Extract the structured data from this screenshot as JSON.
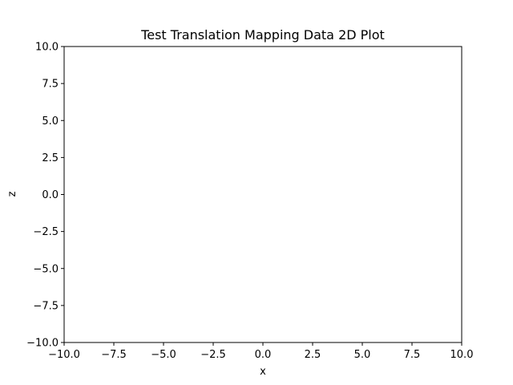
{
  "chart_data": {
    "type": "scatter",
    "title": "Test Translation Mapping Data 2D Plot",
    "xlabel": "x",
    "ylabel": "z",
    "xlim": [
      -10,
      10
    ],
    "ylim": [
      -10,
      10
    ],
    "x_ticks": [
      -10,
      -7.5,
      -5,
      -2.5,
      0,
      2.5,
      5,
      7.5,
      10
    ],
    "y_ticks": [
      -10,
      -7.5,
      -5,
      -2.5,
      0,
      2.5,
      5,
      7.5,
      10
    ],
    "x_tick_labels": [
      "−10.0",
      "−7.5",
      "−5.0",
      "−2.5",
      "0.0",
      "2.5",
      "5.0",
      "7.5",
      "10.0"
    ],
    "y_tick_labels": [
      "−10.0",
      "−7.5",
      "−5.0",
      "−2.5",
      "0.0",
      "2.5",
      "5.0",
      "7.5",
      "10.0"
    ],
    "grid": false,
    "series": [],
    "colors": {
      "axis": "#000000",
      "background": "#ffffff"
    }
  }
}
